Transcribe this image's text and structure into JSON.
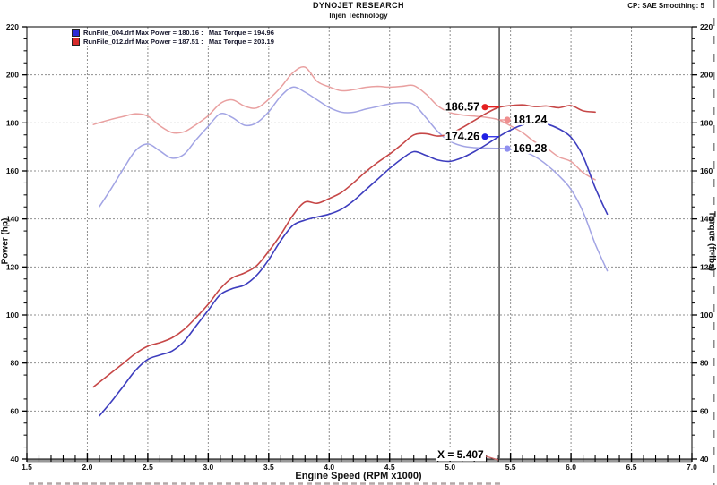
{
  "header": {
    "title": "DYNOJET RESEARCH",
    "subtitle": "Injen Technology",
    "correction": "CP: SAE  Smoothing: 5"
  },
  "legend": {
    "entries": [
      {
        "swatch_color": "#2a2ad6",
        "file": "RunFile_004.drf",
        "max_power": 180.16,
        "max_torque": 194.96,
        "text": "RunFile_004.drf Max Power = 180.16 :   Max Torque = 194.96"
      },
      {
        "swatch_color": "#d62a2a",
        "file": "RunFile_012.drf",
        "max_power": 187.51,
        "max_torque": 203.19,
        "text": "RunFile_012.drf Max Power = 187.51 :   Max Torque = 203.19"
      }
    ]
  },
  "chart_data": {
    "type": "line",
    "title": "DYNOJET RESEARCH",
    "subtitle": "Injen Technology",
    "xlabel": "Engine Speed (RPM x1000)",
    "ylabel_left": "Power (hp)",
    "ylabel_right": "Torque (ft-lbs)",
    "xlim": [
      1.5,
      7.0
    ],
    "ylim": [
      40,
      220
    ],
    "x_ticks": [
      "1.5",
      "2.0",
      "2.5",
      "3.0",
      "3.5",
      "4.0",
      "4.5",
      "5.0",
      "5.5",
      "6.0",
      "6.5",
      "7.0"
    ],
    "y_ticks": [
      "220",
      "200",
      "180",
      "160",
      "140",
      "120",
      "100",
      "80",
      "60",
      "40"
    ],
    "x_minor_step": 0.1,
    "y_minor_step": 5,
    "grid": "dashed",
    "legend_position": "top-left",
    "cursor": {
      "x": 5.407,
      "label": "X = 5.407"
    },
    "series": [
      {
        "name": "RunFile_004 Torque",
        "axis": "torque",
        "color": "#a2a4e4",
        "width": 1.5,
        "x": [
          2.1,
          2.2,
          2.3,
          2.4,
          2.5,
          2.6,
          2.7,
          2.8,
          2.9,
          3.0,
          3.1,
          3.2,
          3.3,
          3.4,
          3.5,
          3.6,
          3.7,
          3.8,
          3.9,
          4.0,
          4.1,
          4.2,
          4.3,
          4.4,
          4.5,
          4.6,
          4.7,
          4.8,
          4.9,
          5.0,
          5.1,
          5.2,
          5.3,
          5.4,
          5.5,
          5.6,
          5.7,
          5.8,
          5.9,
          6.0,
          6.1,
          6.2,
          6.3
        ],
        "values": [
          145.1,
          152.8,
          161.0,
          168.5,
          171.2,
          168.3,
          165.3,
          166.9,
          173.0,
          178.6,
          183.8,
          182.2,
          179.0,
          180.0,
          184.6,
          191.1,
          194.9,
          192.8,
          189.6,
          186.4,
          184.5,
          184.4,
          185.7,
          186.8,
          187.9,
          188.4,
          187.7,
          182.2,
          176.3,
          172.3,
          170.4,
          169.7,
          169.5,
          169.4,
          169.0,
          168.1,
          166.0,
          162.5,
          158.0,
          152.3,
          142.9,
          129.6,
          118.4
        ]
      },
      {
        "name": "RunFile_012 Torque",
        "axis": "torque",
        "color": "#e9a0a0",
        "width": 1.5,
        "x": [
          2.05,
          2.1,
          2.2,
          2.3,
          2.4,
          2.5,
          2.6,
          2.7,
          2.8,
          2.9,
          3.0,
          3.1,
          3.2,
          3.3,
          3.4,
          3.5,
          3.6,
          3.7,
          3.8,
          3.9,
          4.0,
          4.1,
          4.2,
          4.3,
          4.4,
          4.5,
          4.6,
          4.7,
          4.8,
          4.9,
          5.0,
          5.1,
          5.2,
          5.3,
          5.4,
          5.5,
          5.6,
          5.7,
          5.8,
          5.9,
          6.0,
          6.1,
          6.2
        ],
        "values": [
          179.3,
          180.1,
          181.5,
          182.7,
          183.8,
          182.8,
          178.8,
          176.0,
          176.3,
          179.3,
          183.0,
          188.1,
          189.6,
          187.0,
          186.2,
          189.8,
          194.8,
          200.9,
          203.2,
          197.3,
          195.0,
          193.4,
          193.8,
          194.8,
          195.2,
          194.9,
          195.2,
          195.5,
          192.0,
          187.0,
          184.3,
          183.3,
          182.8,
          182.3,
          181.3,
          178.8,
          175.9,
          172.1,
          169.4,
          165.8,
          163.9,
          159.3,
          156.3
        ]
      },
      {
        "name": "RunFile_004 Power",
        "axis": "power",
        "color": "#3d3dbe",
        "width": 1.6,
        "x": [
          2.1,
          2.2,
          2.3,
          2.4,
          2.5,
          2.6,
          2.7,
          2.8,
          2.9,
          3.0,
          3.1,
          3.2,
          3.3,
          3.4,
          3.5,
          3.6,
          3.7,
          3.8,
          3.9,
          4.0,
          4.1,
          4.2,
          4.3,
          4.4,
          4.5,
          4.6,
          4.7,
          4.8,
          4.9,
          5.0,
          5.1,
          5.2,
          5.3,
          5.4,
          5.5,
          5.6,
          5.7,
          5.8,
          5.9,
          6.0,
          6.1,
          6.2,
          6.3
        ],
        "values": [
          58,
          64,
          70.5,
          77,
          81.5,
          83.3,
          85,
          89,
          95.5,
          102,
          108.5,
          111,
          112.5,
          116.5,
          123,
          131,
          137.3,
          139.5,
          140.8,
          142,
          144,
          147.5,
          152,
          156.5,
          161,
          165,
          168,
          166.5,
          164.5,
          164,
          165.5,
          168,
          171,
          174.2,
          177,
          179.2,
          180.16,
          179.5,
          177.5,
          174,
          166,
          153,
          142
        ]
      },
      {
        "name": "RunFile_012 Power",
        "axis": "power",
        "color": "#c64747",
        "width": 1.6,
        "x": [
          2.05,
          2.1,
          2.2,
          2.3,
          2.4,
          2.5,
          2.6,
          2.7,
          2.8,
          2.9,
          3.0,
          3.1,
          3.2,
          3.3,
          3.4,
          3.5,
          3.6,
          3.7,
          3.8,
          3.9,
          4.0,
          4.1,
          4.2,
          4.3,
          4.4,
          4.5,
          4.6,
          4.7,
          4.8,
          4.9,
          5.0,
          5.1,
          5.2,
          5.3,
          5.4,
          5.5,
          5.6,
          5.7,
          5.8,
          5.9,
          6.0,
          6.1,
          6.2
        ],
        "values": [
          70,
          72,
          76,
          80,
          84,
          87,
          88.5,
          90.5,
          94,
          99,
          104.5,
          111,
          115.5,
          117.5,
          120.5,
          126.5,
          133.5,
          141.5,
          147.0,
          146.5,
          148.5,
          151,
          155,
          159.5,
          163.5,
          167,
          171,
          175,
          175.5,
          174.5,
          175.5,
          178,
          181,
          184,
          186.4,
          187.2,
          187.51,
          186.8,
          187,
          186.3,
          187.2,
          185,
          184.5
        ]
      }
    ],
    "markers": [
      {
        "label": "186.57",
        "value": 186.57,
        "x": 5.407,
        "color": "#e41f1f",
        "side": "left"
      },
      {
        "label": "181.24",
        "value": 181.24,
        "x": 5.407,
        "color": "#ef8f8f",
        "side": "right"
      },
      {
        "label": "174.26",
        "value": 174.26,
        "x": 5.407,
        "color": "#1f1fe4",
        "side": "left"
      },
      {
        "label": "169.28",
        "value": 169.28,
        "x": 5.407,
        "color": "#9090ef",
        "side": "right"
      }
    ]
  }
}
